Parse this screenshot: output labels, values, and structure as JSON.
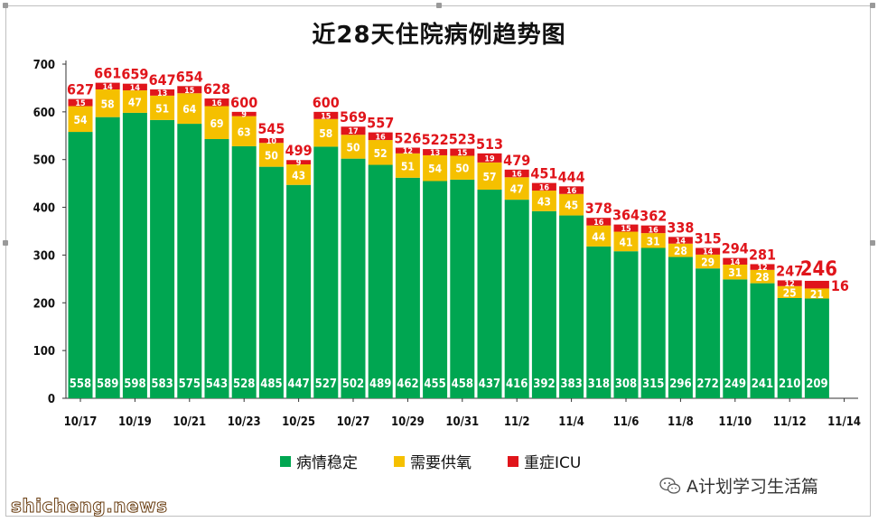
{
  "chart_data": {
    "type": "bar",
    "stacked": true,
    "title": "近28天住院病例趋势图",
    "ylim": [
      0,
      700
    ],
    "yticks": [
      0,
      100,
      200,
      300,
      400,
      500,
      600,
      700
    ],
    "grid": false,
    "legend_position": "bottom",
    "x_tick_labels": [
      "10/17",
      "10/19",
      "10/21",
      "10/23",
      "10/25",
      "10/27",
      "10/29",
      "10/31",
      "11/2",
      "11/4",
      "11/6",
      "11/8",
      "11/10",
      "11/12",
      "11/14"
    ],
    "categories": [
      "10/17",
      "10/18",
      "10/19",
      "10/20",
      "10/21",
      "10/22",
      "10/23",
      "10/24",
      "10/25",
      "10/26",
      "10/27",
      "10/28",
      "10/29",
      "10/30",
      "10/31",
      "11/1",
      "11/2",
      "11/3",
      "11/4",
      "11/5",
      "11/6",
      "11/7",
      "11/8",
      "11/9",
      "11/10",
      "11/11",
      "11/12",
      "11/13"
    ],
    "series": [
      {
        "name": "病情稳定",
        "color": "#00a651",
        "values": [
          558,
          589,
          598,
          583,
          575,
          543,
          528,
          485,
          447,
          527,
          502,
          489,
          462,
          455,
          458,
          437,
          416,
          392,
          383,
          318,
          308,
          315,
          296,
          272,
          249,
          241,
          210,
          209
        ]
      },
      {
        "name": "需要供氧",
        "color": "#f5c000",
        "values": [
          54,
          58,
          47,
          51,
          64,
          69,
          63,
          50,
          43,
          58,
          50,
          52,
          51,
          54,
          50,
          57,
          47,
          43,
          45,
          44,
          41,
          31,
          28,
          29,
          31,
          28,
          25,
          21
        ]
      },
      {
        "name": "重症ICU",
        "color": "#e0151b",
        "values": [
          15,
          14,
          14,
          13,
          15,
          16,
          9,
          10,
          9,
          15,
          17,
          16,
          12,
          13,
          15,
          19,
          16,
          16,
          16,
          16,
          15,
          16,
          14,
          14,
          14,
          12,
          12,
          16
        ]
      }
    ],
    "totals": [
      627,
      661,
      659,
      647,
      654,
      628,
      600,
      545,
      499,
      600,
      569,
      557,
      526,
      522,
      523,
      513,
      479,
      451,
      444,
      378,
      364,
      362,
      338,
      315,
      294,
      281,
      247,
      246
    ]
  },
  "legend": {
    "items": [
      {
        "label": "病情稳定",
        "color": "#00a651"
      },
      {
        "label": "需要供氧",
        "color": "#f5c000"
      },
      {
        "label": "重症ICU",
        "color": "#e0151b"
      }
    ]
  },
  "watermark": {
    "text": "A计划学习生活篇",
    "icon": "wechat-icon"
  },
  "footer": {
    "text": "shicheng.news"
  }
}
